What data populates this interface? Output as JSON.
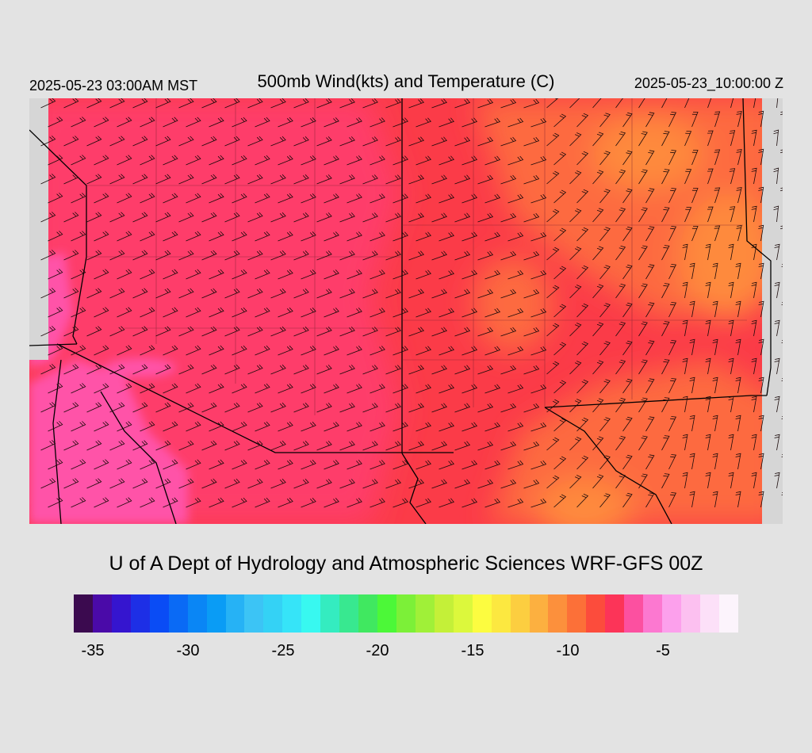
{
  "header": {
    "local_time": "2025-05-23 03:00AM MST",
    "title": "500mb Wind(kts) and Temperature (C)",
    "utc_time": "2025-05-23_10:00:00 Z"
  },
  "footer": {
    "credit": "U of A Dept of Hydrology and Atmospheric Sciences WRF-GFS 00Z"
  },
  "colorbar": {
    "colors": [
      "#3b0a4f",
      "#4a0aa8",
      "#3515cf",
      "#1d2fe6",
      "#0a4cf5",
      "#0a6af5",
      "#0a86f5",
      "#0a9cf5",
      "#26b2f5",
      "#3cc4f5",
      "#34d2f5",
      "#36e4f8",
      "#38f8f0",
      "#34ecc0",
      "#38e890",
      "#40e860",
      "#4cf838",
      "#7cf038",
      "#a0f038",
      "#c4f038",
      "#dcf83c",
      "#fcfc40",
      "#fce840",
      "#fcce40",
      "#fcb040",
      "#fc903c",
      "#fc7038",
      "#fc4c3c",
      "#fc3458",
      "#fc50a0",
      "#fc78d0",
      "#fca0ec",
      "#fcc0f0",
      "#fce0f8",
      "#fcf4fc"
    ],
    "ticks": [
      "-35",
      "-30",
      "-25",
      "-20",
      "-15",
      "-10",
      "-5"
    ]
  },
  "map_colors": {
    "cold": "#ff52a8",
    "cool": "#fe3e6a",
    "mid": "#fb3b48",
    "warm": "#fd6a40",
    "warmer": "#fe8a3c",
    "background": "#d6d6d6"
  }
}
